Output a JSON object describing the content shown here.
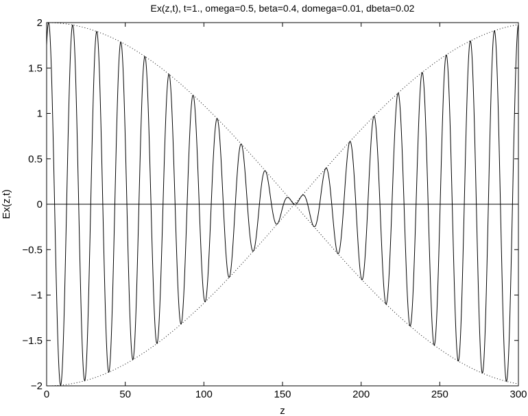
{
  "chart_data": {
    "type": "line",
    "title": "Ex(z,t), t=1., omega=0.5, beta=0.4, domega=0.01, dbeta=0.02",
    "xlabel": "z",
    "ylabel": "Ex(z,t)",
    "xlim": [
      0,
      300
    ],
    "ylim": [
      -2,
      2
    ],
    "x_ticks": [
      0,
      50,
      100,
      150,
      200,
      250,
      300
    ],
    "x_tick_labels": [
      "0",
      "50",
      "100",
      "150",
      "200",
      "250",
      "300"
    ],
    "y_ticks": [
      2,
      1.5,
      1,
      0.5,
      0,
      -0.5,
      -1,
      -1.5,
      -2
    ],
    "y_tick_labels": [
      "2",
      "1.5",
      "1",
      "0.5",
      "0",
      "−0.5",
      "−1",
      "−1.5",
      "−2"
    ],
    "grid": false,
    "zero_line": true,
    "parameters": {
      "t": 1,
      "omega": 0.5,
      "beta": 0.4,
      "domega": 0.01,
      "dbeta": 0.02
    },
    "series": [
      {
        "style": "solid",
        "color": "#000000"
      },
      {
        "style": "dotted",
        "color": "#000000"
      },
      {
        "style": "dotted",
        "color": "#000000"
      }
    ]
  }
}
